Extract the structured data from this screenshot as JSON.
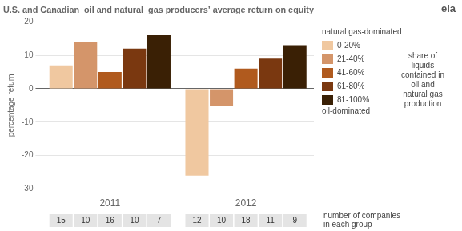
{
  "chart_data": {
    "type": "bar",
    "title": "U.S. and Canadian  oil and natural  gas producers’ average return on equity",
    "ylabel": "percentage return",
    "categories": [
      "2011",
      "2012"
    ],
    "series": [
      {
        "name": "0-20%",
        "color": "#f0c8a0",
        "values": [
          7,
          -26
        ],
        "companies": [
          15,
          12
        ]
      },
      {
        "name": "21-40%",
        "color": "#d4956a",
        "values": [
          14,
          -5
        ],
        "companies": [
          10,
          10
        ]
      },
      {
        "name": "41-60%",
        "color": "#b05a1e",
        "values": [
          5,
          6
        ],
        "companies": [
          16,
          18
        ]
      },
      {
        "name": "61-80%",
        "color": "#7a3810",
        "values": [
          12,
          9
        ],
        "companies": [
          10,
          11
        ]
      },
      {
        "name": "81-100%",
        "color": "#3a2005",
        "values": [
          16,
          13
        ],
        "companies": [
          7,
          9
        ]
      }
    ],
    "ylim": [
      -30,
      20
    ],
    "yticks": [
      -30,
      -20,
      -10,
      0,
      10,
      20
    ],
    "grid": true,
    "legend": "right",
    "annotations": [
      "natural gas-dominated",
      "oil-dominated",
      "share of\nliquids\ncontained in\noil and\nnatural gas\nproduction",
      "number of companies\nin each group",
      "eia"
    ]
  }
}
